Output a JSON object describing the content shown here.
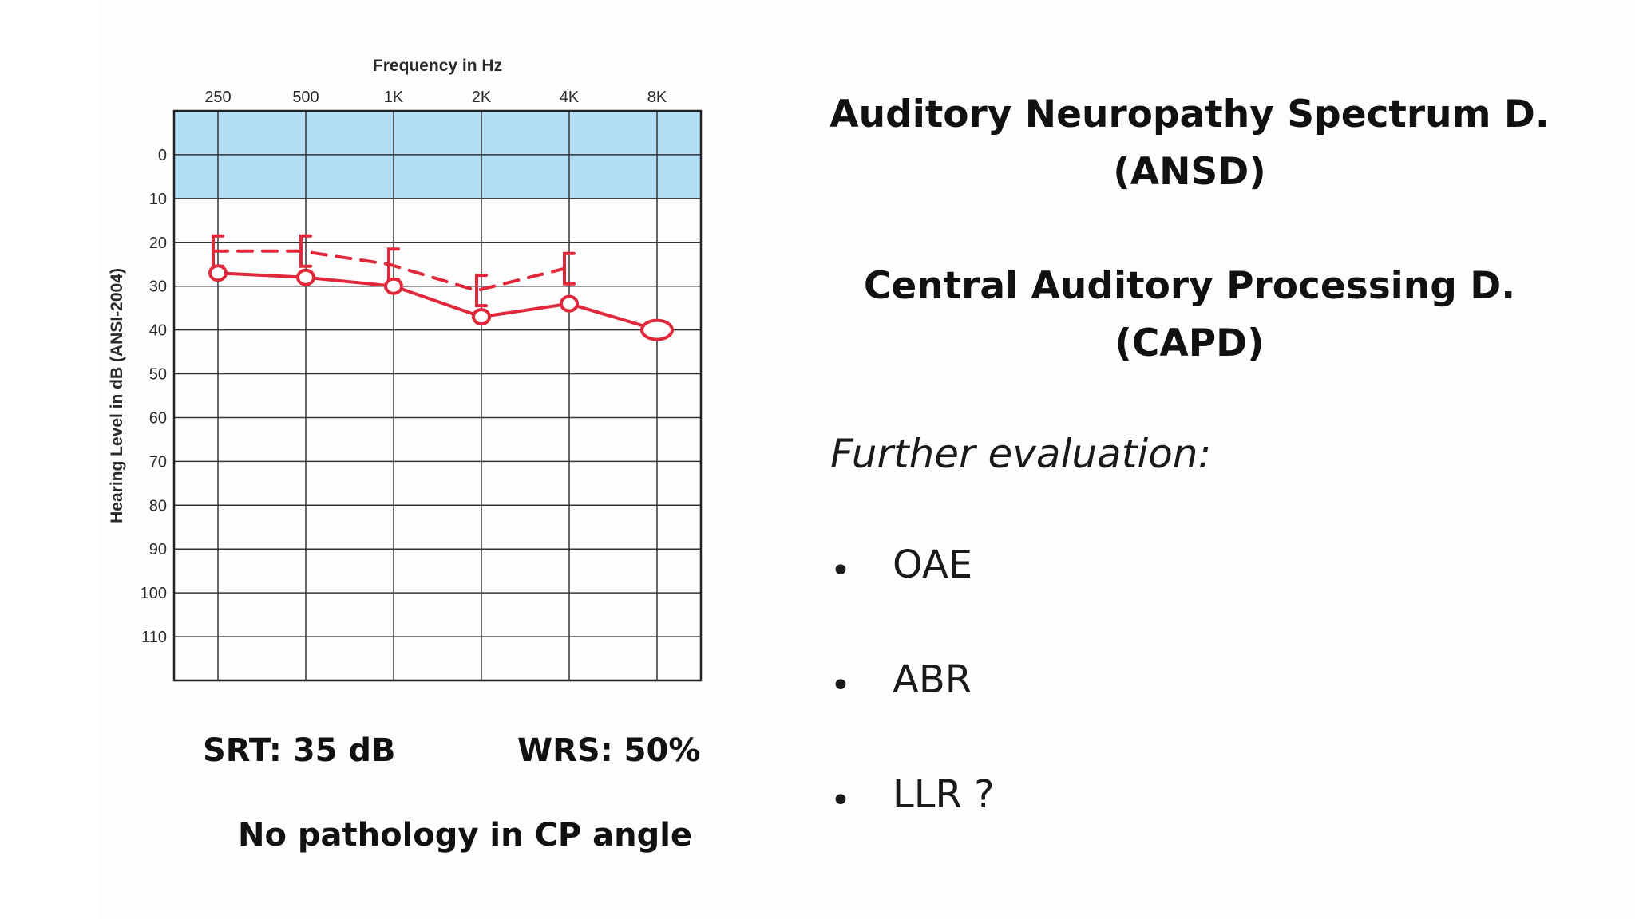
{
  "chart_data": {
    "type": "line",
    "title": "Frequency in Hz",
    "xlabel": "Frequency in Hz",
    "ylabel": "Hearing Level in dB (ANSI-2004)",
    "categories": [
      "250",
      "500",
      "1K",
      "2K",
      "4K",
      "8K"
    ],
    "y_ticks": [
      0,
      10,
      20,
      30,
      40,
      50,
      60,
      70,
      80,
      90,
      100,
      110
    ],
    "ylim": [
      -10,
      120
    ],
    "y_inverted": true,
    "normal_band": [
      -10,
      10
    ],
    "series": [
      {
        "marker": "bracket",
        "values": [
          22,
          22,
          25,
          31,
          26,
          null
        ]
      },
      {
        "marker": "circle",
        "values": [
          27,
          28,
          30,
          37,
          34,
          40
        ]
      }
    ],
    "colors": {
      "band": "#b3def5",
      "series": "#e0283a",
      "grid": "#333333"
    }
  },
  "captions": {
    "srt": "SRT: 35 dB",
    "wrs": "WRS: 50%",
    "cp": "No pathology in CP angle"
  },
  "headings": {
    "ansd_line1": "Auditory Neuropathy Spectrum D.",
    "ansd_line2": "(ANSD)",
    "capd_line1": "Central Auditory Processing D.",
    "capd_line2": "(CAPD)"
  },
  "evaluation": {
    "title": "Further evaluation:",
    "bullet": "•",
    "items": [
      "OAE",
      "ABR",
      "LLR ?"
    ]
  }
}
